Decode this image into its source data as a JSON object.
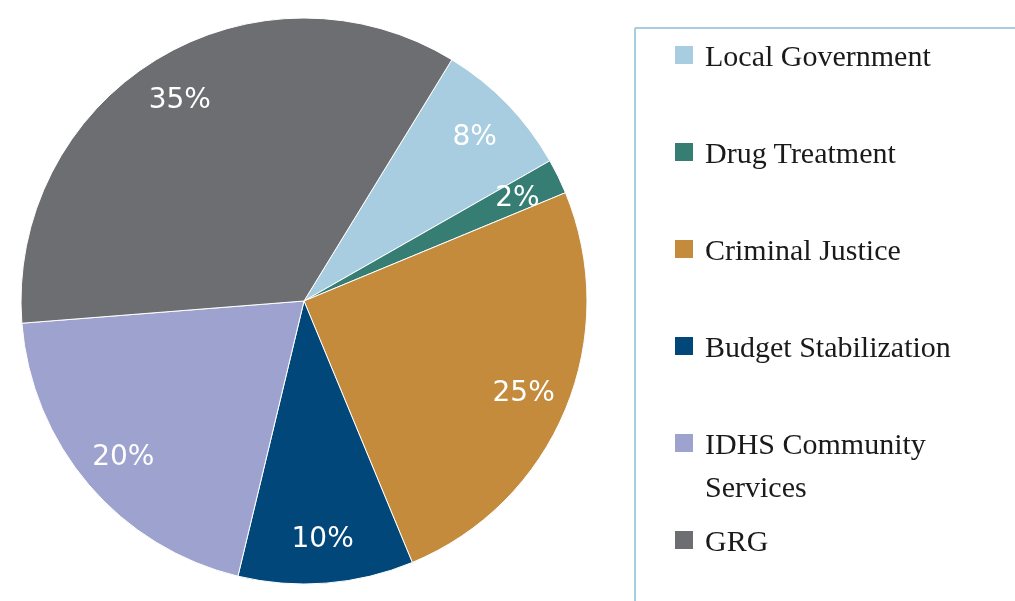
{
  "chart_data": {
    "type": "pie",
    "categories": [
      "Local Government",
      "Drug Treatment",
      "Criminal Justice",
      "Budget Stabilization",
      "IDHS Community Services",
      "GRG"
    ],
    "values": [
      8,
      2,
      25,
      10,
      20,
      35
    ],
    "value_labels": [
      "8%",
      "2%",
      "25%",
      "10%",
      "20%",
      "35%"
    ],
    "colors": [
      "#a9cde0",
      "#367e74",
      "#c38b3b",
      "#02477a",
      "#9ea2cf",
      "#6d6e72"
    ],
    "legend": "right"
  }
}
